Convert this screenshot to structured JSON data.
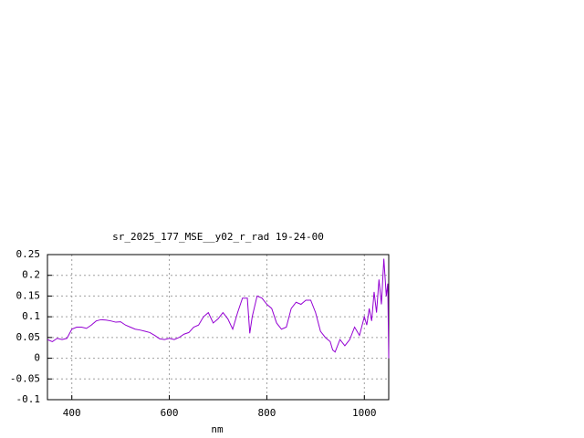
{
  "chart_data": {
    "type": "line",
    "title": "sr_2025_177_MSE__y02_r_rad 19-24-00",
    "x_label": "nm",
    "x": [
      350,
      360,
      370,
      380,
      390,
      400,
      410,
      420,
      430,
      440,
      450,
      460,
      470,
      480,
      490,
      500,
      510,
      520,
      530,
      540,
      550,
      560,
      570,
      580,
      590,
      600,
      610,
      620,
      630,
      640,
      650,
      660,
      670,
      680,
      690,
      700,
      710,
      720,
      730,
      740,
      750,
      760,
      765,
      770,
      780,
      790,
      800,
      810,
      820,
      830,
      840,
      850,
      860,
      870,
      880,
      890,
      900,
      910,
      920,
      930,
      935,
      940,
      950,
      960,
      970,
      980,
      990,
      1000,
      1005,
      1010,
      1015,
      1020,
      1025,
      1030,
      1035,
      1040,
      1045,
      1048,
      1050
    ],
    "series": [
      {
        "color": "#9400d3",
        "values": [
          0.045,
          0.04,
          0.048,
          0.045,
          0.048,
          0.07,
          0.075,
          0.075,
          0.072,
          0.08,
          0.09,
          0.093,
          0.092,
          0.09,
          0.087,
          0.088,
          0.08,
          0.075,
          0.07,
          0.068,
          0.065,
          0.062,
          0.055,
          0.047,
          0.045,
          0.048,
          0.045,
          0.05,
          0.058,
          0.062,
          0.075,
          0.08,
          0.1,
          0.11,
          0.085,
          0.095,
          0.11,
          0.095,
          0.07,
          0.11,
          0.145,
          0.145,
          0.06,
          0.1,
          0.15,
          0.145,
          0.13,
          0.12,
          0.085,
          0.07,
          0.075,
          0.12,
          0.135,
          0.13,
          0.14,
          0.14,
          0.11,
          0.065,
          0.05,
          0.04,
          0.02,
          0.015,
          0.045,
          0.03,
          0.045,
          0.075,
          0.055,
          0.1,
          0.08,
          0.12,
          0.09,
          0.16,
          0.11,
          0.19,
          0.13,
          0.24,
          0.15,
          0.18,
          0.0
        ]
      }
    ],
    "xlim": [
      350,
      1050
    ],
    "xticks": [
      400,
      600,
      800,
      1000
    ],
    "ylim": [
      -0.1,
      0.25
    ],
    "yticks": [
      -0.1,
      -0.05,
      0,
      0.05,
      0.1,
      0.15,
      0.2,
      0.25
    ],
    "grid": true
  }
}
